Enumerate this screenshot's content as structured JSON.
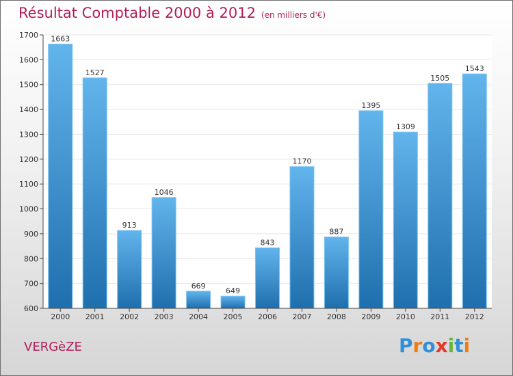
{
  "header": {
    "title": "Résultat Comptable 2000 à 2012",
    "subtitle": "(en milliers d'€)"
  },
  "commune": "VERGèZE",
  "logo": {
    "text": "Proxiti",
    "letter_colors": [
      "#2f8fd8",
      "#f07d12",
      "#2f8fd8",
      "#e8362b",
      "#6ab43e",
      "#2f8fd8",
      "#f07d12"
    ]
  },
  "colors": {
    "bar_light": "#62b4ec",
    "bar_dark": "#1f6fae",
    "grid": "#e6e6e6",
    "axis": "#444444"
  },
  "chart_data": {
    "type": "bar",
    "title": "Résultat Comptable 2000 à 2012",
    "subtitle": "(en milliers d'€)",
    "categories": [
      "2000",
      "2001",
      "2002",
      "2003",
      "2004",
      "2005",
      "2006",
      "2007",
      "2008",
      "2009",
      "2010",
      "2011",
      "2012"
    ],
    "values": [
      1663,
      1527,
      913,
      1046,
      669,
      649,
      843,
      1170,
      887,
      1395,
      1309,
      1505,
      1543
    ],
    "ylim": [
      600,
      1700
    ],
    "yticks": [
      600,
      700,
      800,
      900,
      1000,
      1100,
      1200,
      1300,
      1400,
      1500,
      1600,
      1700
    ],
    "grid": true,
    "data_labels": true
  }
}
